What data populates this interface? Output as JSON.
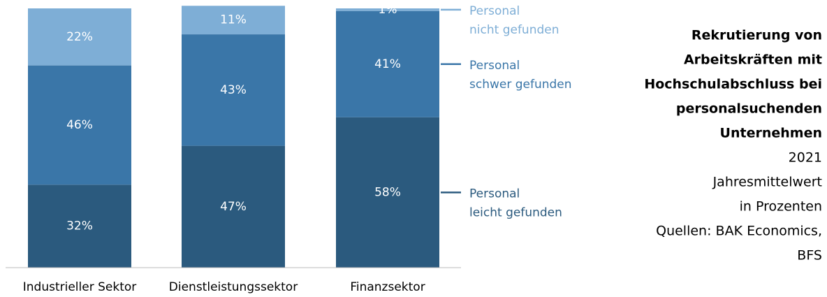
{
  "chart_data": {
    "type": "stacked_bar",
    "title": [
      "Rekrutierung von",
      "Arbeitskräften mit",
      "Hochschulabschluss bei",
      "personalsuchenden",
      "Unternehmen"
    ],
    "subtitle": [
      "2021",
      "Jahresmittelwert",
      "in Prozenten",
      "Quellen: BAK Economics,",
      "BFS"
    ],
    "categories": [
      "Industrieller Sektor",
      "Dienstleistungssektor",
      "Finanzsektor"
    ],
    "series": [
      {
        "name": "Personal\nleicht gefunden",
        "color": "#2b5a7e",
        "values": [
          32,
          47,
          58
        ],
        "value_labels": [
          "32%",
          "47%",
          "58%"
        ]
      },
      {
        "name": "Personal\nschwer gefunden",
        "color": "#3a76a8",
        "values": [
          46,
          43,
          41
        ],
        "value_labels": [
          "46%",
          "43%",
          "41%"
        ]
      },
      {
        "name": "Personal\nnicht gefunden",
        "color": "#7eaed6",
        "values": [
          22,
          11,
          1
        ],
        "value_labels": [
          "22%",
          "11%",
          "1%"
        ]
      }
    ],
    "ylim": [
      0,
      100
    ]
  }
}
